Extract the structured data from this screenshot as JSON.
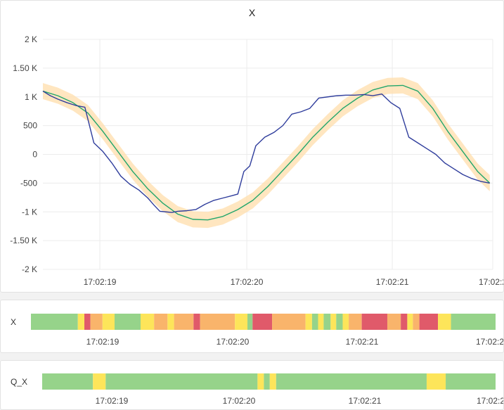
{
  "main_panel": {
    "title": "X"
  },
  "chart_data": {
    "type": "line",
    "title": "X",
    "ylim": [
      -2000,
      2000
    ],
    "xlim": [
      0,
      3.0
    ],
    "y_ticks": [
      {
        "value": 2000,
        "label": "2 K"
      },
      {
        "value": 1500,
        "label": "1.50 K"
      },
      {
        "value": 1000,
        "label": "1 K"
      },
      {
        "value": 500,
        "label": "500"
      },
      {
        "value": 0,
        "label": "0"
      },
      {
        "value": -500,
        "label": "-500"
      },
      {
        "value": -1000,
        "label": "-1 K"
      },
      {
        "value": -1500,
        "label": "-1.50 K"
      },
      {
        "value": -2000,
        "label": "-2 K"
      }
    ],
    "x_ticks": [
      {
        "value": 0.38,
        "label": "17:02:19"
      },
      {
        "value": 1.36,
        "label": "17:02:20"
      },
      {
        "value": 2.33,
        "label": "17:02:21"
      },
      {
        "value": 3.0,
        "label": "17:02:2"
      }
    ],
    "grid": true,
    "series": [
      {
        "color": "#2f3d9c",
        "x": [
          0.0,
          0.05,
          0.1,
          0.16,
          0.22,
          0.28,
          0.34,
          0.4,
          0.46,
          0.52,
          0.58,
          0.64,
          0.7,
          0.74,
          0.78,
          0.82,
          0.86,
          0.9,
          0.96,
          1.02,
          1.08,
          1.14,
          1.2,
          1.26,
          1.3,
          1.34,
          1.38,
          1.42,
          1.48,
          1.54,
          1.6,
          1.66,
          1.72,
          1.78,
          1.84,
          1.9,
          1.96,
          2.02,
          2.08,
          2.14,
          2.2,
          2.26,
          2.32,
          2.38,
          2.44,
          2.5,
          2.56,
          2.62,
          2.68,
          2.74,
          2.8,
          2.86,
          2.92,
          2.98
        ],
        "y": [
          1100,
          1020,
          960,
          900,
          850,
          820,
          200,
          50,
          -150,
          -380,
          -520,
          -620,
          -760,
          -880,
          -990,
          -1000,
          -1010,
          -990,
          -980,
          -960,
          -870,
          -800,
          -760,
          -720,
          -690,
          -300,
          -200,
          150,
          300,
          380,
          500,
          700,
          740,
          800,
          980,
          1000,
          1020,
          1030,
          1030,
          1040,
          1020,
          1050,
          900,
          800,
          300,
          200,
          100,
          0,
          -150,
          -250,
          -350,
          -420,
          -470,
          -500
        ]
      },
      {
        "color": "#21a66b",
        "x": [
          0.0,
          0.1,
          0.2,
          0.3,
          0.4,
          0.5,
          0.6,
          0.7,
          0.8,
          0.9,
          1.0,
          1.1,
          1.2,
          1.3,
          1.4,
          1.5,
          1.6,
          1.7,
          1.8,
          1.9,
          2.0,
          2.1,
          2.2,
          2.3,
          2.4,
          2.5,
          2.6,
          2.7,
          2.8,
          2.9,
          2.98
        ],
        "y": [
          1100,
          1020,
          900,
          720,
          400,
          50,
          -300,
          -600,
          -850,
          -1040,
          -1130,
          -1140,
          -1080,
          -960,
          -800,
          -560,
          -280,
          0,
          300,
          560,
          800,
          980,
          1120,
          1190,
          1200,
          1100,
          800,
          400,
          50,
          -300,
          -500
        ]
      }
    ],
    "band": {
      "color": "#ffe0b0",
      "half_width": 140
    }
  },
  "state_panel_1": {
    "row_label": "X",
    "x_ticks": [
      "17:02:19",
      "17:02:20",
      "17:02:21",
      "17:02:2"
    ],
    "colors": {
      "green": "#96d38a",
      "yellow": "#fde55a",
      "orange": "#f9b46b",
      "red": "#e05a6a"
    },
    "segments": [
      {
        "start": 0.0,
        "end": 0.101,
        "state": "green"
      },
      {
        "start": 0.101,
        "end": 0.115,
        "state": "yellow"
      },
      {
        "start": 0.115,
        "end": 0.128,
        "state": "red"
      },
      {
        "start": 0.128,
        "end": 0.154,
        "state": "orange"
      },
      {
        "start": 0.154,
        "end": 0.18,
        "state": "yellow"
      },
      {
        "start": 0.18,
        "end": 0.236,
        "state": "green"
      },
      {
        "start": 0.236,
        "end": 0.265,
        "state": "yellow"
      },
      {
        "start": 0.265,
        "end": 0.294,
        "state": "orange"
      },
      {
        "start": 0.294,
        "end": 0.308,
        "state": "yellow"
      },
      {
        "start": 0.308,
        "end": 0.35,
        "state": "orange"
      },
      {
        "start": 0.35,
        "end": 0.364,
        "state": "red"
      },
      {
        "start": 0.364,
        "end": 0.439,
        "state": "orange"
      },
      {
        "start": 0.439,
        "end": 0.466,
        "state": "yellow"
      },
      {
        "start": 0.466,
        "end": 0.477,
        "state": "green"
      },
      {
        "start": 0.477,
        "end": 0.519,
        "state": "red"
      },
      {
        "start": 0.519,
        "end": 0.591,
        "state": "orange"
      },
      {
        "start": 0.591,
        "end": 0.605,
        "state": "yellow"
      },
      {
        "start": 0.605,
        "end": 0.618,
        "state": "green"
      },
      {
        "start": 0.618,
        "end": 0.63,
        "state": "yellow"
      },
      {
        "start": 0.63,
        "end": 0.645,
        "state": "green"
      },
      {
        "start": 0.645,
        "end": 0.657,
        "state": "yellow"
      },
      {
        "start": 0.657,
        "end": 0.671,
        "state": "green"
      },
      {
        "start": 0.671,
        "end": 0.684,
        "state": "yellow"
      },
      {
        "start": 0.684,
        "end": 0.712,
        "state": "orange"
      },
      {
        "start": 0.712,
        "end": 0.767,
        "state": "red"
      },
      {
        "start": 0.767,
        "end": 0.796,
        "state": "orange"
      },
      {
        "start": 0.796,
        "end": 0.81,
        "state": "red"
      },
      {
        "start": 0.81,
        "end": 0.822,
        "state": "yellow"
      },
      {
        "start": 0.822,
        "end": 0.836,
        "state": "orange"
      },
      {
        "start": 0.836,
        "end": 0.876,
        "state": "red"
      },
      {
        "start": 0.876,
        "end": 0.904,
        "state": "yellow"
      },
      {
        "start": 0.904,
        "end": 1.0,
        "state": "green"
      }
    ]
  },
  "state_panel_2": {
    "row_label": "Q_X",
    "x_ticks": [
      "17:02:19",
      "17:02:20",
      "17:02:21",
      "17:02:2"
    ],
    "colors": {
      "green": "#96d38a",
      "yellow": "#fde55a"
    },
    "segments": [
      {
        "start": 0.0,
        "end": 0.112,
        "state": "green"
      },
      {
        "start": 0.112,
        "end": 0.14,
        "state": "yellow"
      },
      {
        "start": 0.14,
        "end": 0.475,
        "state": "green"
      },
      {
        "start": 0.475,
        "end": 0.489,
        "state": "yellow"
      },
      {
        "start": 0.489,
        "end": 0.502,
        "state": "green"
      },
      {
        "start": 0.502,
        "end": 0.516,
        "state": "yellow"
      },
      {
        "start": 0.516,
        "end": 0.848,
        "state": "green"
      },
      {
        "start": 0.848,
        "end": 0.89,
        "state": "yellow"
      },
      {
        "start": 0.89,
        "end": 1.0,
        "state": "green"
      }
    ]
  }
}
